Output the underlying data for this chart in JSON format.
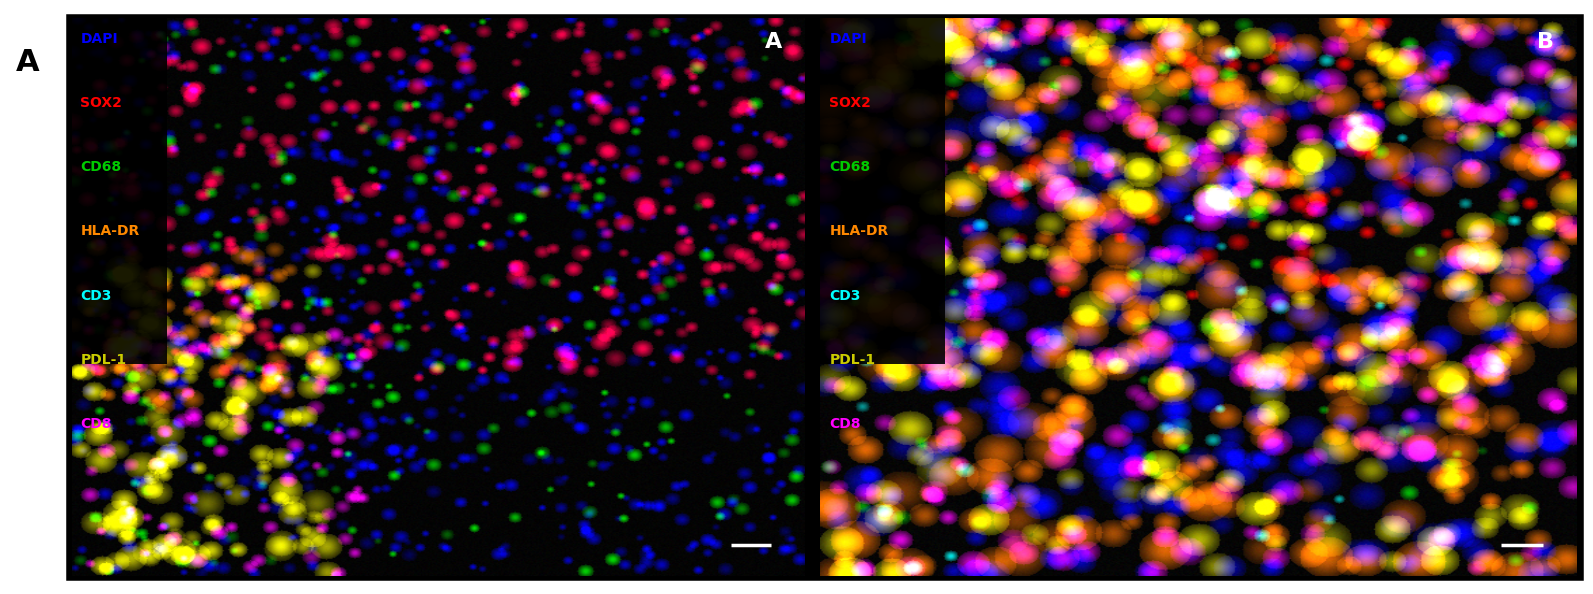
{
  "figure_width": 15.93,
  "figure_height": 5.94,
  "dpi": 100,
  "outer_bg": "#ffffff",
  "panel_bg": "#000000",
  "border_color": "#ffffff",
  "border_lw": 2.5,
  "panel_A_label": "A",
  "panel_B_label": "B",
  "outer_label": "A",
  "legend_items": [
    {
      "label": "DAPI",
      "color": "#0000ff"
    },
    {
      "label": "SOX2",
      "color": "#ff0000"
    },
    {
      "label": "CD68",
      "color": "#00cc00"
    },
    {
      "label": "HLA-DR",
      "color": "#ff8800"
    },
    {
      "label": "CD3",
      "color": "#00ffff"
    },
    {
      "label": "PDL-1",
      "color": "#cccc00"
    },
    {
      "label": "CD8",
      "color": "#ff00ff"
    }
  ],
  "scalebar_color": "#ffffff",
  "panel_label_color": "#ffffff",
  "panel_label_fontsize": 16,
  "legend_fontsize": 10,
  "outer_label_fontsize": 22,
  "outer_label_color": "#000000"
}
